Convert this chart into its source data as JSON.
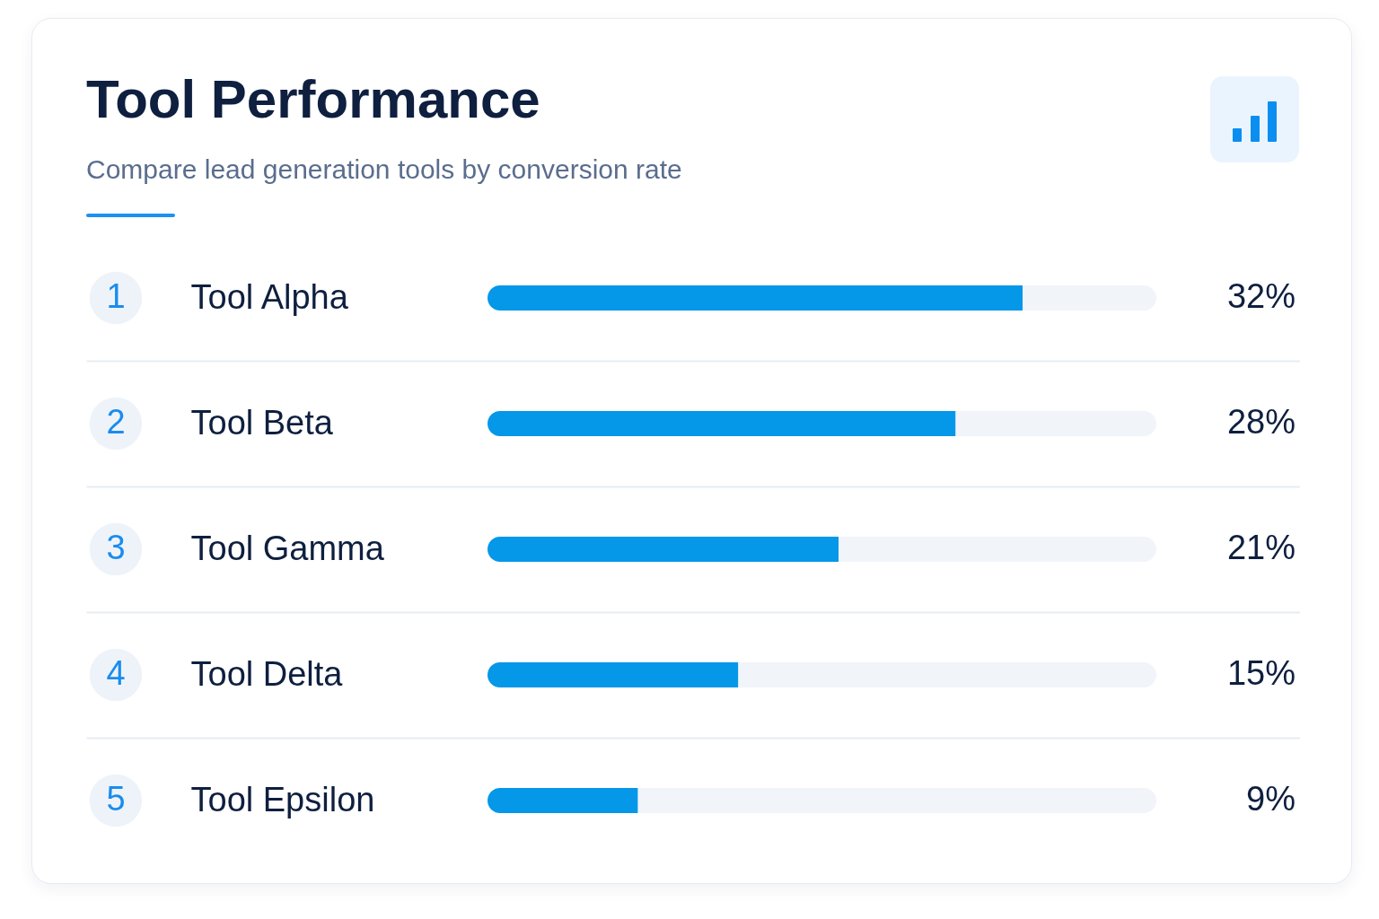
{
  "chart_data": {
    "type": "bar",
    "orientation": "horizontal",
    "stacked": true,
    "title": "Tool Performance",
    "subtitle": "Compare lead generation tools by conversion rate",
    "categories": [
      "Tool Alpha",
      "Tool Beta",
      "Tool Gamma",
      "Tool Delta",
      "Tool Epsilon"
    ],
    "series": [
      {
        "color": "#0597e8",
        "values": [
          32,
          28,
          21,
          15,
          9
        ],
        "value_labels": [
          "32%",
          "28%",
          "21%",
          "15%",
          "9%"
        ]
      },
      {
        "color": "#f1f4f9",
        "values": [
          8,
          12,
          19,
          25,
          31
        ]
      }
    ],
    "xlim": [
      0,
      40
    ],
    "grid": "y",
    "tick_labels": "y",
    "annotations": [
      "1",
      "2",
      "3",
      "4",
      "5"
    ]
  }
}
